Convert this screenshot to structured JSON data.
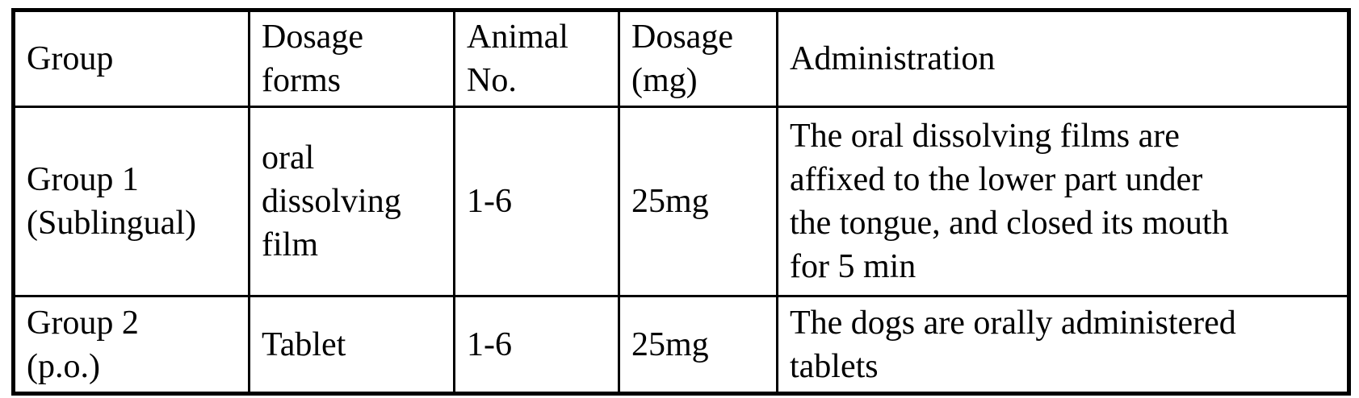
{
  "colors": {
    "border": "#000000",
    "background": "#ffffff",
    "text": "#000000"
  },
  "table": {
    "columns": [
      {
        "id": "group",
        "label": "Group"
      },
      {
        "id": "dosage_forms",
        "label": "Dosage\nforms"
      },
      {
        "id": "animal_no",
        "label": "Animal\nNo."
      },
      {
        "id": "dosage_mg",
        "label": "Dosage\n(mg)"
      },
      {
        "id": "administration",
        "label": "Administration"
      }
    ],
    "rows": [
      {
        "group": "Group 1\n(Sublingual)",
        "dosage_forms": "oral\ndissolving\nfilm",
        "animal_no": "1-6",
        "dosage_mg": "25mg",
        "administration": "The oral dissolving films are\naffixed to the lower part under\nthe tongue, and closed its mouth\nfor 5 min"
      },
      {
        "group": "Group 2\n(p.o.)",
        "dosage_forms": "Tablet",
        "animal_no": "1-6",
        "dosage_mg": "25mg",
        "administration": "The dogs are orally administered\ntablets"
      }
    ]
  }
}
